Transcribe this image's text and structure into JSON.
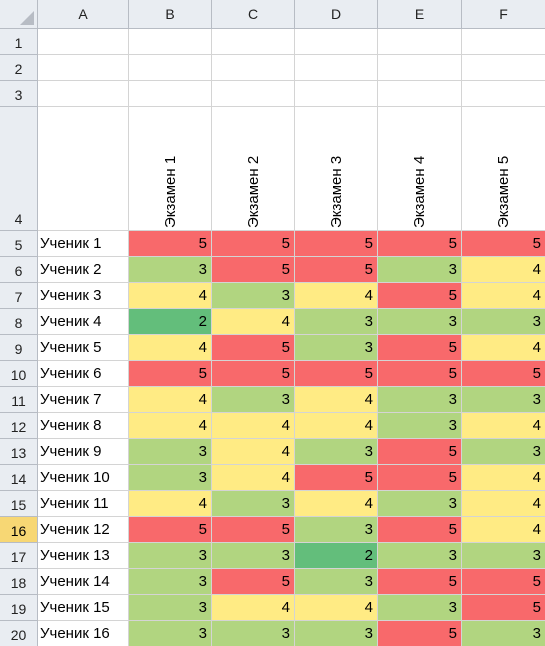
{
  "corner": {
    "icon": "select-all-triangle-icon"
  },
  "columns": [
    "A",
    "B",
    "C",
    "D",
    "E",
    "F"
  ],
  "header_row_numbers": [
    "1",
    "2",
    "3",
    "4"
  ],
  "exam_headers": [
    "Экзамен 1",
    "Экзамен 2",
    "Экзамен 3",
    "Экзамен 4",
    "Экзамен 5"
  ],
  "active_row": "16",
  "colors": {
    "5": "#f8696b",
    "4": "#ffeb84",
    "3": "#b1d580",
    "2": "#63be7b"
  },
  "rows": [
    {
      "row": "5",
      "name": "Ученик 1",
      "scores": [
        "5",
        "5",
        "5",
        "5",
        "5"
      ]
    },
    {
      "row": "6",
      "name": "Ученик 2",
      "scores": [
        "3",
        "5",
        "5",
        "3",
        "4"
      ]
    },
    {
      "row": "7",
      "name": "Ученик 3",
      "scores": [
        "4",
        "3",
        "4",
        "5",
        "4"
      ]
    },
    {
      "row": "8",
      "name": "Ученик 4",
      "scores": [
        "2",
        "4",
        "3",
        "3",
        "3"
      ]
    },
    {
      "row": "9",
      "name": "Ученик 5",
      "scores": [
        "4",
        "5",
        "3",
        "5",
        "4"
      ]
    },
    {
      "row": "10",
      "name": "Ученик 6",
      "scores": [
        "5",
        "5",
        "5",
        "5",
        "5"
      ]
    },
    {
      "row": "11",
      "name": "Ученик 7",
      "scores": [
        "4",
        "3",
        "4",
        "3",
        "3"
      ]
    },
    {
      "row": "12",
      "name": "Ученик 8",
      "scores": [
        "4",
        "4",
        "4",
        "3",
        "4"
      ]
    },
    {
      "row": "13",
      "name": "Ученик 9",
      "scores": [
        "3",
        "4",
        "3",
        "5",
        "3"
      ]
    },
    {
      "row": "14",
      "name": "Ученик 10",
      "scores": [
        "3",
        "4",
        "5",
        "5",
        "4"
      ]
    },
    {
      "row": "15",
      "name": "Ученик 11",
      "scores": [
        "4",
        "3",
        "4",
        "3",
        "4"
      ]
    },
    {
      "row": "16",
      "name": "Ученик 12",
      "scores": [
        "5",
        "5",
        "3",
        "5",
        "4"
      ]
    },
    {
      "row": "17",
      "name": "Ученик 13",
      "scores": [
        "3",
        "3",
        "2",
        "3",
        "3"
      ]
    },
    {
      "row": "18",
      "name": "Ученик 14",
      "scores": [
        "3",
        "5",
        "3",
        "5",
        "5"
      ]
    },
    {
      "row": "19",
      "name": "Ученик 15",
      "scores": [
        "3",
        "4",
        "4",
        "3",
        "5"
      ]
    },
    {
      "row": "20",
      "name": "Ученик 16",
      "scores": [
        "3",
        "3",
        "3",
        "5",
        "3"
      ]
    }
  ]
}
